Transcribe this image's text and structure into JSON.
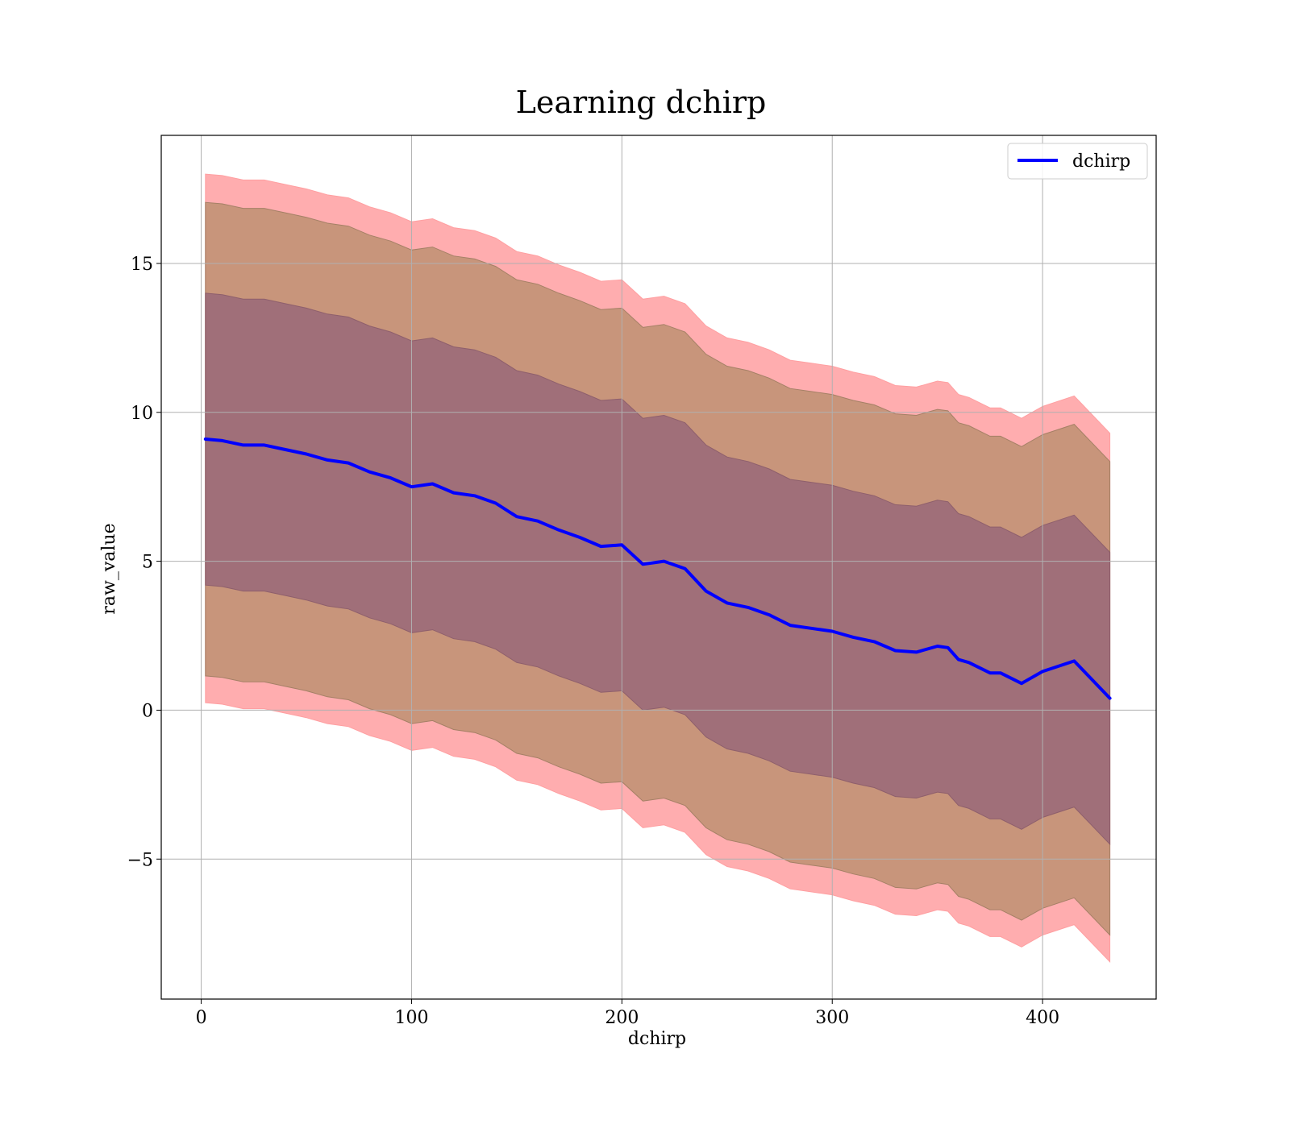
{
  "chart_data": {
    "type": "line",
    "title": "Learning dchirp",
    "xlabel": "dchirp",
    "ylabel": "raw_value",
    "xlim": [
      -19,
      454
    ],
    "ylim": [
      -9.7,
      19.3
    ],
    "x_ticks": [
      0,
      100,
      200,
      300,
      400
    ],
    "y_ticks": [
      -5,
      0,
      5,
      10,
      15
    ],
    "x_tick_labels": [
      "0",
      "100",
      "200",
      "300",
      "400"
    ],
    "y_tick_labels": [
      "−5",
      "0",
      "5",
      "10",
      "15"
    ],
    "grid": true,
    "legend_position": "top-right",
    "colors": {
      "line": "#0000ff",
      "band_outer": "#ff9fa1",
      "band_middle": "#c8957b",
      "band_inner": "#a06f79",
      "grid": "#b0b0b0"
    },
    "band_offsets": {
      "inner_upper": 4.9,
      "inner_lower": 4.9,
      "middle_upper": 7.95,
      "middle_lower": 7.95,
      "outer_upper": 8.9,
      "outer_lower": 8.85
    },
    "series": [
      {
        "name": "dchirp",
        "x": [
          2,
          10,
          20,
          30,
          40,
          50,
          60,
          70,
          80,
          90,
          100,
          110,
          120,
          130,
          140,
          150,
          160,
          170,
          180,
          190,
          200,
          210,
          220,
          230,
          240,
          250,
          260,
          270,
          280,
          290,
          300,
          310,
          320,
          330,
          340,
          350,
          355,
          360,
          365,
          375,
          380,
          390,
          400,
          415,
          432
        ],
        "y": [
          9.1,
          9.05,
          8.9,
          8.9,
          8.75,
          8.6,
          8.4,
          8.3,
          8.0,
          7.8,
          7.5,
          7.6,
          7.3,
          7.2,
          6.95,
          6.5,
          6.35,
          6.05,
          5.8,
          5.5,
          5.55,
          4.9,
          5.0,
          4.75,
          4.0,
          3.6,
          3.45,
          3.2,
          2.85,
          2.75,
          2.65,
          2.45,
          2.3,
          2.0,
          1.95,
          2.15,
          2.1,
          1.7,
          1.6,
          1.25,
          1.25,
          0.9,
          1.3,
          1.65,
          0.4
        ]
      }
    ]
  }
}
